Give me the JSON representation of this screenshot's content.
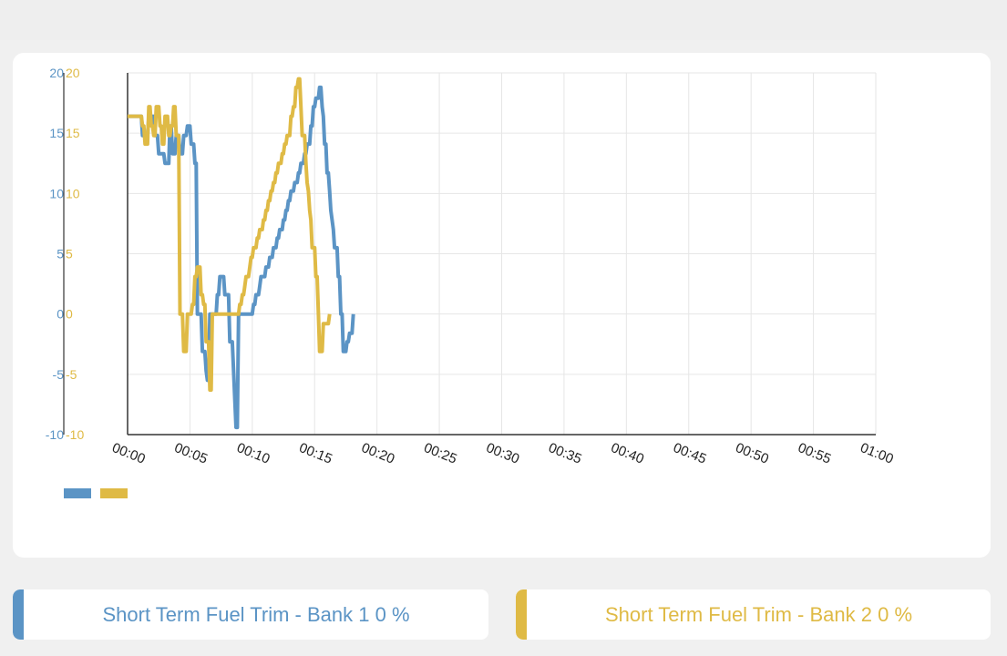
{
  "colors": {
    "bank1": "#5b94c5",
    "bank2": "#dfba45",
    "grid": "#e6e6e6",
    "axis": "#333333"
  },
  "chart_data": {
    "type": "line",
    "xlim_seconds": [
      0,
      3600
    ],
    "x_ticks": [
      "00:00",
      "00:05",
      "00:10",
      "00:15",
      "00:20",
      "00:25",
      "00:30",
      "00:35",
      "00:40",
      "00:45",
      "00:50",
      "00:55",
      "01:00"
    ],
    "ylim": [
      -10,
      20
    ],
    "y_ticks": [
      20,
      15,
      10,
      5,
      0,
      -5,
      -10
    ],
    "grid": true,
    "series": [
      {
        "color": "#5b94c5",
        "points": [
          [
            0,
            16.4
          ],
          [
            66,
            16.4
          ],
          [
            72,
            14.8
          ],
          [
            96,
            14.8
          ],
          [
            102,
            16.4
          ],
          [
            126,
            16.4
          ],
          [
            132,
            14.8
          ],
          [
            144,
            14.8
          ],
          [
            150,
            13.3
          ],
          [
            174,
            13.3
          ],
          [
            180,
            12.5
          ],
          [
            198,
            12.5
          ],
          [
            204,
            15.6
          ],
          [
            210,
            15.6
          ],
          [
            216,
            13.3
          ],
          [
            228,
            13.3
          ],
          [
            234,
            14.8
          ],
          [
            246,
            14.8
          ],
          [
            252,
            13.3
          ],
          [
            264,
            13.3
          ],
          [
            270,
            14.8
          ],
          [
            282,
            14.8
          ],
          [
            288,
            15.6
          ],
          [
            300,
            15.6
          ],
          [
            306,
            14.1
          ],
          [
            318,
            14.1
          ],
          [
            324,
            12.5
          ],
          [
            330,
            12.5
          ],
          [
            336,
            0
          ],
          [
            354,
            0
          ],
          [
            360,
            -3.1
          ],
          [
            372,
            -3.1
          ],
          [
            378,
            -4.7
          ],
          [
            384,
            -5.5
          ],
          [
            390,
            -5.5
          ],
          [
            396,
            0
          ],
          [
            420,
            0
          ],
          [
            426,
            0
          ],
          [
            432,
            1.6
          ],
          [
            438,
            1.6
          ],
          [
            444,
            3.1
          ],
          [
            462,
            3.1
          ],
          [
            468,
            1.6
          ],
          [
            486,
            1.6
          ],
          [
            492,
            -2.3
          ],
          [
            504,
            -2.3
          ],
          [
            510,
            -4.7
          ],
          [
            522,
            -9.4
          ],
          [
            528,
            -9.4
          ],
          [
            534,
            0
          ],
          [
            600,
            0
          ],
          [
            606,
            0.8
          ],
          [
            612,
            0.8
          ],
          [
            618,
            1.6
          ],
          [
            630,
            1.6
          ],
          [
            636,
            2.3
          ],
          [
            642,
            3.1
          ],
          [
            660,
            3.1
          ],
          [
            666,
            3.9
          ],
          [
            678,
            3.9
          ],
          [
            684,
            4.7
          ],
          [
            696,
            4.7
          ],
          [
            702,
            5.5
          ],
          [
            714,
            5.5
          ],
          [
            720,
            6.3
          ],
          [
            726,
            6.3
          ],
          [
            732,
            7.0
          ],
          [
            744,
            7.0
          ],
          [
            750,
            7.8
          ],
          [
            756,
            7.8
          ],
          [
            762,
            8.6
          ],
          [
            768,
            8.6
          ],
          [
            774,
            9.4
          ],
          [
            780,
            9.4
          ],
          [
            786,
            10.2
          ],
          [
            798,
            10.2
          ],
          [
            804,
            10.9
          ],
          [
            816,
            10.9
          ],
          [
            822,
            11.7
          ],
          [
            828,
            11.7
          ],
          [
            834,
            12.5
          ],
          [
            846,
            12.5
          ],
          [
            852,
            13.3
          ],
          [
            858,
            13.3
          ],
          [
            864,
            14.1
          ],
          [
            876,
            14.1
          ],
          [
            882,
            15.6
          ],
          [
            888,
            15.6
          ],
          [
            894,
            17.2
          ],
          [
            900,
            17.2
          ],
          [
            906,
            17.9
          ],
          [
            918,
            17.9
          ],
          [
            924,
            18.8
          ],
          [
            930,
            18.8
          ],
          [
            936,
            17.2
          ],
          [
            942,
            16.4
          ],
          [
            948,
            14.1
          ],
          [
            954,
            14.1
          ],
          [
            960,
            11.7
          ],
          [
            966,
            11.7
          ],
          [
            972,
            10.2
          ],
          [
            978,
            8.6
          ],
          [
            984,
            7.8
          ],
          [
            990,
            7.0
          ],
          [
            996,
            5.5
          ],
          [
            1008,
            5.5
          ],
          [
            1014,
            3.1
          ],
          [
            1020,
            3.1
          ],
          [
            1026,
            0
          ],
          [
            1032,
            0
          ],
          [
            1038,
            -3.1
          ],
          [
            1050,
            -3.1
          ],
          [
            1056,
            -2.3
          ],
          [
            1062,
            -2.3
          ],
          [
            1068,
            -1.6
          ],
          [
            1080,
            -1.6
          ],
          [
            1086,
            0
          ]
        ]
      },
      {
        "color": "#dfba45",
        "points": [
          [
            0,
            16.4
          ],
          [
            60,
            16.4
          ],
          [
            66,
            16.4
          ],
          [
            72,
            15.6
          ],
          [
            78,
            15.6
          ],
          [
            84,
            14.1
          ],
          [
            96,
            14.1
          ],
          [
            102,
            17.2
          ],
          [
            108,
            17.2
          ],
          [
            114,
            15.6
          ],
          [
            120,
            15.6
          ],
          [
            126,
            14.8
          ],
          [
            132,
            14.8
          ],
          [
            138,
            17.2
          ],
          [
            150,
            17.2
          ],
          [
            156,
            15.6
          ],
          [
            162,
            15.6
          ],
          [
            168,
            14.1
          ],
          [
            174,
            14.1
          ],
          [
            180,
            16.4
          ],
          [
            192,
            16.4
          ],
          [
            198,
            14.8
          ],
          [
            204,
            14.8
          ],
          [
            210,
            15.6
          ],
          [
            216,
            15.6
          ],
          [
            222,
            17.2
          ],
          [
            228,
            17.2
          ],
          [
            234,
            14.8
          ],
          [
            246,
            14.8
          ],
          [
            252,
            0
          ],
          [
            264,
            0
          ],
          [
            270,
            -3.1
          ],
          [
            282,
            -3.1
          ],
          [
            288,
            0
          ],
          [
            306,
            0
          ],
          [
            312,
            0.8
          ],
          [
            318,
            0.8
          ],
          [
            324,
            3.1
          ],
          [
            330,
            3.1
          ],
          [
            336,
            3.9
          ],
          [
            348,
            3.9
          ],
          [
            354,
            1.6
          ],
          [
            360,
            1.6
          ],
          [
            366,
            0.8
          ],
          [
            372,
            0.8
          ],
          [
            378,
            -2.3
          ],
          [
            390,
            -2.3
          ],
          [
            396,
            -6.3
          ],
          [
            402,
            -6.3
          ],
          [
            408,
            0
          ],
          [
            534,
            0
          ],
          [
            540,
            0.8
          ],
          [
            546,
            0.8
          ],
          [
            552,
            1.6
          ],
          [
            558,
            1.6
          ],
          [
            564,
            2.3
          ],
          [
            570,
            3.1
          ],
          [
            582,
            3.1
          ],
          [
            588,
            3.9
          ],
          [
            594,
            4.7
          ],
          [
            600,
            4.7
          ],
          [
            606,
            5.5
          ],
          [
            618,
            5.5
          ],
          [
            624,
            6.3
          ],
          [
            630,
            6.3
          ],
          [
            636,
            7.0
          ],
          [
            648,
            7.0
          ],
          [
            654,
            7.8
          ],
          [
            660,
            7.8
          ],
          [
            666,
            8.6
          ],
          [
            672,
            8.6
          ],
          [
            678,
            9.4
          ],
          [
            684,
            9.4
          ],
          [
            690,
            10.2
          ],
          [
            696,
            10.2
          ],
          [
            702,
            10.9
          ],
          [
            708,
            10.9
          ],
          [
            714,
            11.7
          ],
          [
            720,
            11.7
          ],
          [
            726,
            12.5
          ],
          [
            738,
            12.5
          ],
          [
            744,
            13.3
          ],
          [
            750,
            13.3
          ],
          [
            756,
            14.1
          ],
          [
            762,
            14.1
          ],
          [
            768,
            14.8
          ],
          [
            780,
            14.8
          ],
          [
            786,
            16.4
          ],
          [
            792,
            16.4
          ],
          [
            798,
            17.2
          ],
          [
            804,
            17.2
          ],
          [
            810,
            18.8
          ],
          [
            816,
            18.8
          ],
          [
            822,
            19.5
          ],
          [
            828,
            19.5
          ],
          [
            834,
            17.2
          ],
          [
            840,
            14.8
          ],
          [
            852,
            14.8
          ],
          [
            858,
            12.5
          ],
          [
            864,
            10.9
          ],
          [
            870,
            10.2
          ],
          [
            876,
            8.6
          ],
          [
            882,
            7.8
          ],
          [
            888,
            5.5
          ],
          [
            900,
            5.5
          ],
          [
            906,
            3.1
          ],
          [
            912,
            3.1
          ],
          [
            918,
            0
          ],
          [
            924,
            -3.1
          ],
          [
            936,
            -3.1
          ],
          [
            942,
            -0.8
          ],
          [
            966,
            -0.8
          ],
          [
            972,
            0
          ]
        ]
      }
    ]
  },
  "pills": [
    {
      "label": "Short Term Fuel Trim - Bank 1 0 %"
    },
    {
      "label": "Short Term Fuel Trim - Bank 2 0 %"
    }
  ]
}
